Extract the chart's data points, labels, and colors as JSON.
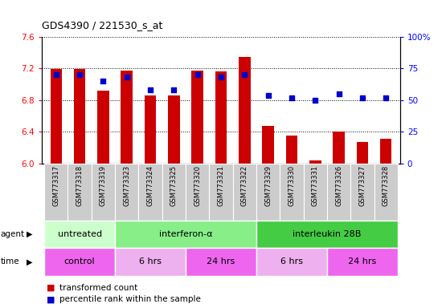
{
  "title": "GDS4390 / 221530_s_at",
  "samples": [
    "GSM773317",
    "GSM773318",
    "GSM773319",
    "GSM773323",
    "GSM773324",
    "GSM773325",
    "GSM773320",
    "GSM773321",
    "GSM773322",
    "GSM773329",
    "GSM773330",
    "GSM773331",
    "GSM773326",
    "GSM773327",
    "GSM773328"
  ],
  "transformed_count": [
    7.19,
    7.19,
    6.92,
    7.17,
    6.86,
    6.86,
    7.17,
    7.16,
    7.35,
    6.47,
    6.35,
    6.04,
    6.4,
    6.27,
    6.31
  ],
  "percentile_rank": [
    70,
    70,
    65,
    68,
    58,
    58,
    70,
    68,
    70,
    54,
    52,
    50,
    55,
    52,
    52
  ],
  "ylim_left": [
    6.0,
    7.6
  ],
  "ylim_right": [
    0,
    100
  ],
  "yticks_left": [
    6.0,
    6.4,
    6.8,
    7.2,
    7.6
  ],
  "yticks_right": [
    0,
    25,
    50,
    75,
    100
  ],
  "ytick_labels_right": [
    "0",
    "25",
    "50",
    "75",
    "100%"
  ],
  "bar_color": "#cc0000",
  "dot_color": "#0000cc",
  "bar_bottom": 6.0,
  "agent_groups": [
    {
      "label": "untreated",
      "start": 0,
      "end": 3,
      "color": "#ccffcc"
    },
    {
      "label": "interferon-α",
      "start": 3,
      "end": 9,
      "color": "#88ee88"
    },
    {
      "label": "interleukin 28B",
      "start": 9,
      "end": 15,
      "color": "#44cc44"
    }
  ],
  "time_groups": [
    {
      "label": "control",
      "start": 0,
      "end": 3,
      "color": "#ee66ee"
    },
    {
      "label": "6 hrs",
      "start": 3,
      "end": 6,
      "color": "#eeb0ee"
    },
    {
      "label": "24 hrs",
      "start": 6,
      "end": 9,
      "color": "#ee66ee"
    },
    {
      "label": "6 hrs",
      "start": 9,
      "end": 12,
      "color": "#eeb0ee"
    },
    {
      "label": "24 hrs",
      "start": 12,
      "end": 15,
      "color": "#ee66ee"
    }
  ],
  "background_color": "#ffffff",
  "tick_bg_color": "#cccccc"
}
